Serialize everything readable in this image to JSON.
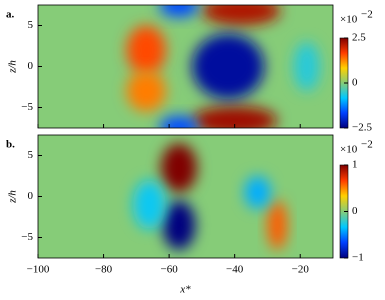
{
  "chart_data": [
    {
      "type": "heatmap",
      "label": "a.",
      "ylabel": "z/h",
      "xlim": [
        -100,
        -10
      ],
      "xticks": [
        -100,
        -80,
        -60,
        -40,
        -20
      ],
      "ylim": [
        -7.5,
        7.5
      ],
      "yticks": [
        5,
        0,
        {
          "value": -5,
          "label": "−5"
        }
      ],
      "colormap": [
        "#00007f",
        "#0040ff",
        "#00c8ff",
        "#86cc78",
        "#ffd000",
        "#ff3c00",
        "#800000"
      ],
      "colorbar": {
        "lim": [
          -2.5,
          2.5
        ],
        "ticks": [
          2.5,
          0,
          {
            "value": -2.5,
            "label": "−2.5"
          }
        ],
        "scale_label": {
          "base": "×10",
          "exponent": "−2"
        }
      },
      "blobs": [
        {
          "x": -38,
          "z": 6.8,
          "rx": 12,
          "rz": 1.8,
          "value": 2.2
        },
        {
          "x": -40,
          "z": -6.6,
          "rx": 13,
          "rz": 1.8,
          "value": 2.3
        },
        {
          "x": -42,
          "z": 0,
          "rx": 11,
          "rz": 4,
          "value": -2.3
        },
        {
          "x": -67,
          "z": 2,
          "rx": 6,
          "rz": 3,
          "value": 1.6
        },
        {
          "x": -67,
          "z": -3,
          "rx": 6,
          "rz": 2.5,
          "value": 1.3
        },
        {
          "x": -57,
          "z": 7.4,
          "rx": 6,
          "rz": 1.4,
          "value": -1.6
        },
        {
          "x": -57,
          "z": -7.4,
          "rx": 6,
          "rz": 1.4,
          "value": -1.6
        },
        {
          "x": -18,
          "z": 0,
          "rx": 4,
          "rz": 3,
          "value": -0.6
        }
      ]
    },
    {
      "type": "heatmap",
      "label": "b.",
      "ylabel": "z/h",
      "xlabel": "x*",
      "xlim": [
        -100,
        -10
      ],
      "xticks": [
        {
          "value": -100,
          "label": "−100"
        },
        {
          "value": -80,
          "label": "−80"
        },
        {
          "value": -60,
          "label": "−60"
        },
        {
          "value": -40,
          "label": "−40"
        },
        {
          "value": -20,
          "label": "−20"
        }
      ],
      "ylim": [
        -7.5,
        7.5
      ],
      "yticks": [
        5,
        0,
        {
          "value": -5,
          "label": "−5"
        }
      ],
      "colormap": [
        "#00007f",
        "#0040ff",
        "#00c8ff",
        "#86cc78",
        "#ffd000",
        "#ff3c00",
        "#800000"
      ],
      "colorbar": {
        "lim": [
          -1,
          1
        ],
        "ticks": [
          1,
          0,
          {
            "value": -1,
            "label": "−1"
          }
        ],
        "scale_label": {
          "base": "×10",
          "exponent": "−2"
        }
      },
      "blobs": [
        {
          "x": -57,
          "z": 3.5,
          "rx": 5.5,
          "rz": 3,
          "value": 1
        },
        {
          "x": -57,
          "z": -3.5,
          "rx": 5,
          "rz": 3,
          "value": -1
        },
        {
          "x": -27,
          "z": -3.5,
          "rx": 3,
          "rz": 3,
          "value": 0.6
        },
        {
          "x": -33,
          "z": 0.5,
          "rx": 4,
          "rz": 2,
          "value": -0.4
        },
        {
          "x": -66,
          "z": -1,
          "rx": 5,
          "rz": 3,
          "value": -0.3
        }
      ]
    }
  ]
}
